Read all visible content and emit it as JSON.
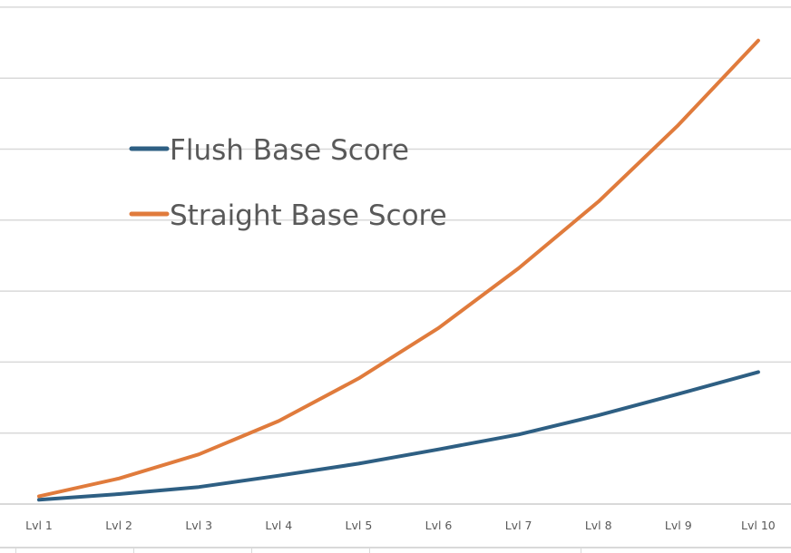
{
  "chart_data": {
    "type": "line",
    "title": "",
    "xlabel": "",
    "ylabel": "",
    "categories": [
      "Lvl 1",
      "Lvl 2",
      "Lvl 3",
      "Lvl 4",
      "Lvl 5",
      "Lvl 6",
      "Lvl 7",
      "Lvl 8",
      "Lvl 9",
      "Lvl 10"
    ],
    "series": [
      {
        "name": "Flush Base Score",
        "color": "#2e5f83",
        "values": [
          0.06,
          0.14,
          0.24,
          0.4,
          0.57,
          0.77,
          0.98,
          1.25,
          1.55,
          1.86
        ]
      },
      {
        "name": "Straight Base Score",
        "color": "#e07b3c",
        "values": [
          0.11,
          0.36,
          0.7,
          1.17,
          1.77,
          2.48,
          3.32,
          4.26,
          5.34,
          6.53
        ]
      }
    ],
    "ylim": [
      0,
      7
    ],
    "y_units": "gridline units (y-axis tick labels not shown)",
    "grid": true,
    "gridline_count": 8,
    "legend_position": "inside-left-top",
    "gridline_color": "#d9d9d9",
    "text_color": "#595959"
  },
  "legend": {
    "items": [
      {
        "label": "Flush Base Score",
        "color": "#2e5f83"
      },
      {
        "label": "Straight Base Score",
        "color": "#e07b3c"
      }
    ]
  },
  "x_axis": {
    "labels": [
      "Lvl 1",
      "Lvl 2",
      "Lvl 3",
      "Lvl 4",
      "Lvl 5",
      "Lvl 6",
      "Lvl 7",
      "Lvl 8",
      "Lvl 9",
      "Lvl 10"
    ]
  }
}
